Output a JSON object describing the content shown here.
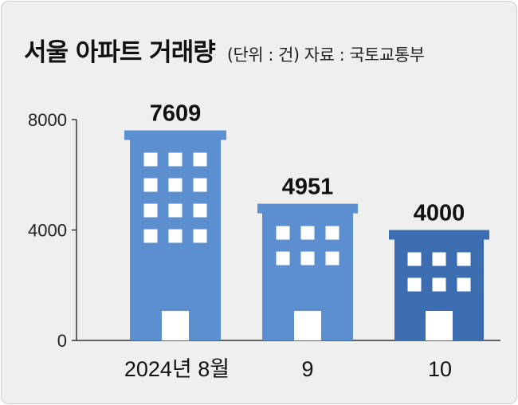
{
  "header": {
    "title": "서울 아파트 거래량",
    "note": "(단위 : 건)  자료 : 국토교통부"
  },
  "colors": {
    "building_light": "#5b8fd0",
    "building_dark": "#3b6db0",
    "window": "#ffffff",
    "axis": "#333333",
    "background": "#efefef"
  },
  "chart_data": {
    "type": "bar",
    "title": "서울 아파트 거래량",
    "unit": "건",
    "source": "국토교통부",
    "categories": [
      "2024년 8월",
      "9",
      "10"
    ],
    "values": [
      7609,
      4951,
      4000
    ],
    "value_labels": [
      "7609",
      "4951",
      "4000"
    ],
    "ylim": [
      0,
      8000
    ],
    "yticks": [
      0,
      4000,
      8000
    ],
    "ytick_labels": [
      "0",
      "4000",
      "8000"
    ],
    "bar_style": "building-icon",
    "grid": false
  }
}
